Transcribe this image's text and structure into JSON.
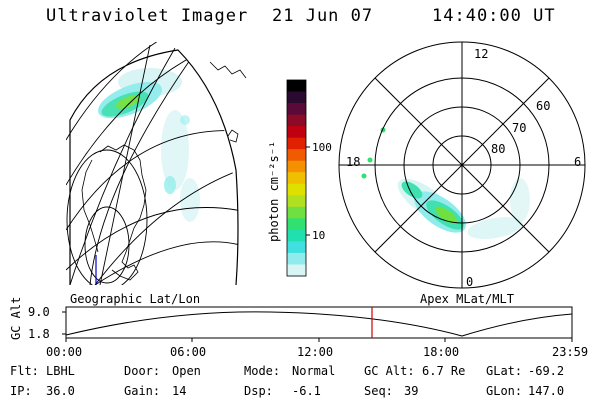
{
  "header": {
    "instrument": "Ultraviolet Imager",
    "date": "21 Jun 07",
    "time": "14:40:00 UT"
  },
  "colorbar": {
    "unit_label": "photon cm⁻²s⁻¹",
    "ticks": [
      "100",
      "10"
    ],
    "colors": [
      "#000000",
      "#2a0a30",
      "#5a0a38",
      "#8a0a28",
      "#c00010",
      "#e02000",
      "#f05a00",
      "#f59000",
      "#f0c000",
      "#e0e000",
      "#b0e020",
      "#70e040",
      "#30e070",
      "#20e0b0",
      "#40e0e0",
      "#90ecec",
      "#d8f4f4"
    ]
  },
  "left_panel": {
    "caption": "Geographic Lat/Lon"
  },
  "right_panel": {
    "caption": "Apex MLat/MLT",
    "mlt_labels": {
      "top": "12",
      "bottom": "0",
      "left": "18",
      "right": "6"
    },
    "lat_labels": [
      "60",
      "70",
      "80"
    ]
  },
  "altitude_plot": {
    "ylabel": "GC Alt",
    "y_ticks": [
      "9.0",
      "1.8"
    ],
    "x_ticks": [
      "00:00",
      "06:00",
      "12:00",
      "18:00",
      "23:59"
    ],
    "current_time_marker": "14:40"
  },
  "status": {
    "filter": {
      "label": "Flt:",
      "value": "LBHL"
    },
    "door": {
      "label": "Door:",
      "value": "Open"
    },
    "mode": {
      "label": "Mode:",
      "value": "Normal"
    },
    "gc_alt": {
      "label": "GC Alt:",
      "value": "6.7 Re"
    },
    "glat": {
      "label": "GLat:",
      "value": "-69.2"
    },
    "ip": {
      "label": "IP:",
      "value": "36.0"
    },
    "gain": {
      "label": "Gain:",
      "value": "14"
    },
    "dsp": {
      "label": "Dsp:",
      "value": "-6.1"
    },
    "seq": {
      "label": "Seq:",
      "value": "39"
    },
    "glon": {
      "label": "GLon:",
      "value": "147.0"
    }
  }
}
